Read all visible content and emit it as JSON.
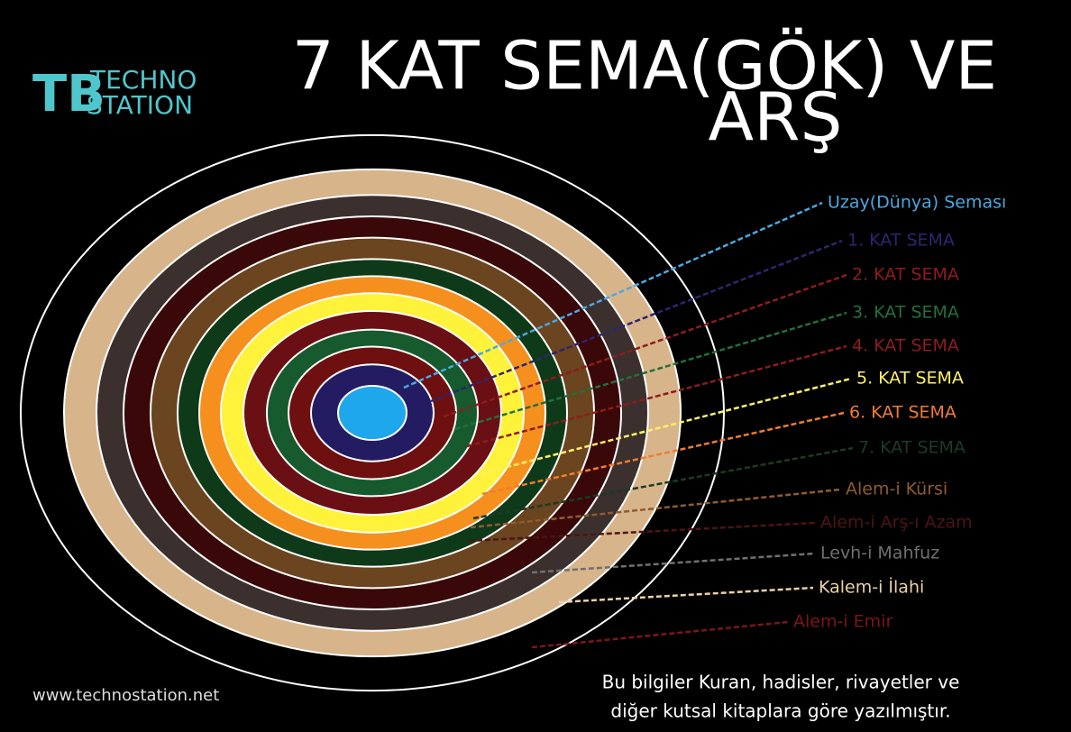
{
  "header": {
    "title_lines": [
      "7 KAT SEMA(GÖK) VE",
      "ARŞ"
    ],
    "logo": [
      "TECHNO",
      "STATION"
    ]
  },
  "layers": [
    {
      "label": "Uzay(Dünya) Seması",
      "color": "#4aa8e0",
      "ring": "#1ea7ea"
    },
    {
      "label": "1. KAT SEMA",
      "color": "#2c2670",
      "ring": "#241c63"
    },
    {
      "label": "2. KAT SEMA",
      "color": "#8e1c1c",
      "ring": "#6e1010"
    },
    {
      "label": "3. KAT SEMA",
      "color": "#22703c",
      "ring": "#165a2e"
    },
    {
      "label": "4. KAT SEMA",
      "color": "#8e1c1c",
      "ring": "#6a0f14"
    },
    {
      "label": "5. KAT SEMA",
      "color": "#fff06a",
      "ring": "#fff23a"
    },
    {
      "label": "6. KAT SEMA",
      "color": "#f07c32",
      "ring": "#f5901e"
    },
    {
      "label": "7. KAT SEMA",
      "color": "#1c3a24",
      "ring": "#0f3a1a"
    },
    {
      "label": "Alem-i Kürsi",
      "color": "#8e5c30",
      "ring": "#6b4420"
    },
    {
      "label": "Alem-i Arş-ı Azam",
      "color": "#4e1414",
      "ring": "#3a0808"
    },
    {
      "label": "Levh-i Mahfuz",
      "color": "#707070",
      "ring": "#3b302e"
    },
    {
      "label": "Kalem-i İlahi",
      "color": "#ecd0a8",
      "ring": "#d8b48a"
    },
    {
      "label": "Alem-i Emir",
      "color": "#7c1616",
      "ring": "#000000"
    }
  ],
  "footer": {
    "url": "www.technostation.net",
    "note_lines": [
      "Bu bilgiler Kuran, hadisler, rivayetler ve",
      "diğer kutsal kitaplara göre yazılmıştır."
    ]
  }
}
